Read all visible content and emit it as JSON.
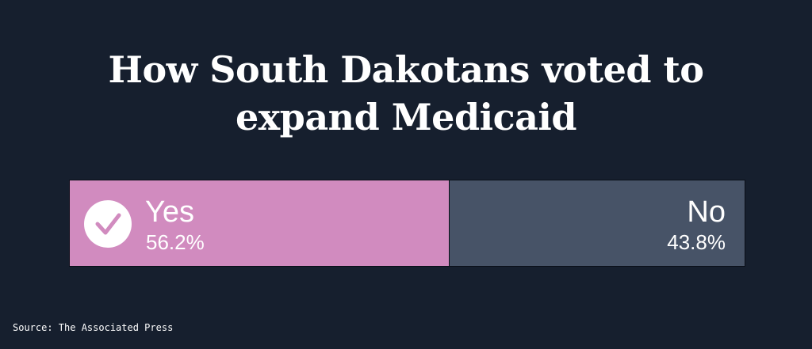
{
  "title": "How South Dakotans voted to expand Medicaid",
  "source": "Source: The Associated Press",
  "colors": {
    "background": "#161f2e",
    "yes": "#d18bbf",
    "no": "#475367",
    "text": "#ffffff"
  },
  "icons": {
    "winner": "checkmark-circle-icon"
  },
  "chart_data": {
    "type": "bar",
    "orientation": "horizontal-stacked",
    "title": "How South Dakotans voted to expand Medicaid",
    "categories": [
      "Yes",
      "No"
    ],
    "values": [
      56.2,
      43.8
    ],
    "labels": [
      "56.2%",
      "43.8%"
    ],
    "unit": "%",
    "winner": "Yes",
    "series": [
      {
        "name": "Yes",
        "value": 56.2,
        "label": "56.2%"
      },
      {
        "name": "No",
        "value": 43.8,
        "label": "43.8%"
      }
    ]
  }
}
